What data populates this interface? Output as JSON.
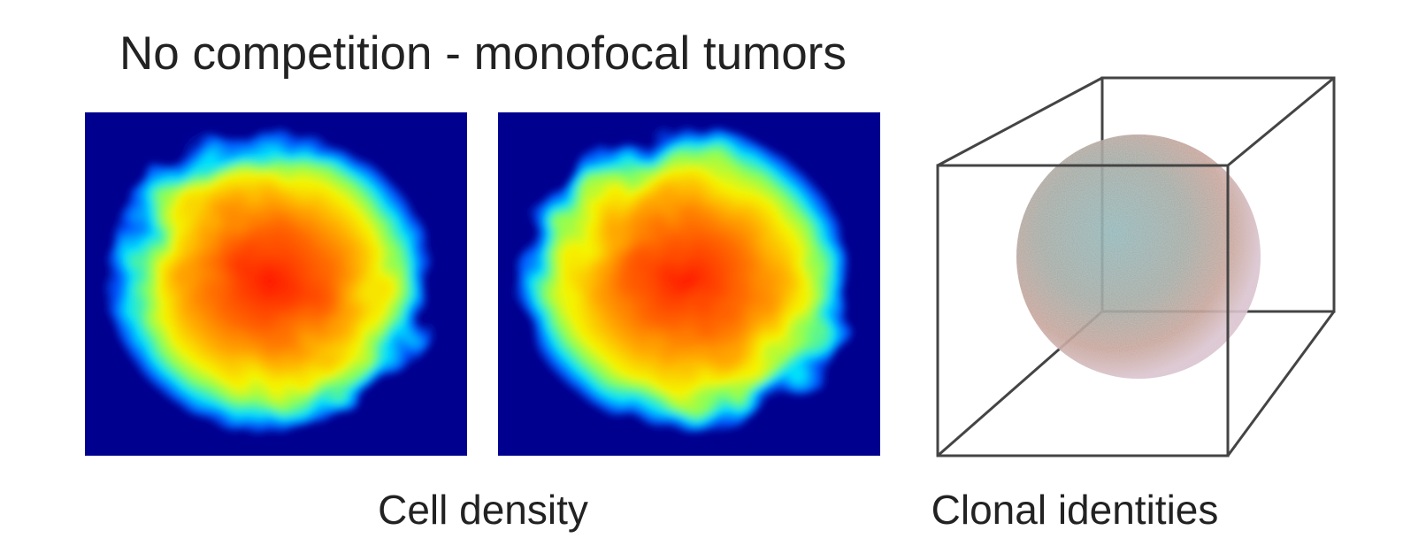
{
  "title": "No competition - monofocal tumors",
  "labels": [
    "Cell density",
    "Clonal identities"
  ]
}
